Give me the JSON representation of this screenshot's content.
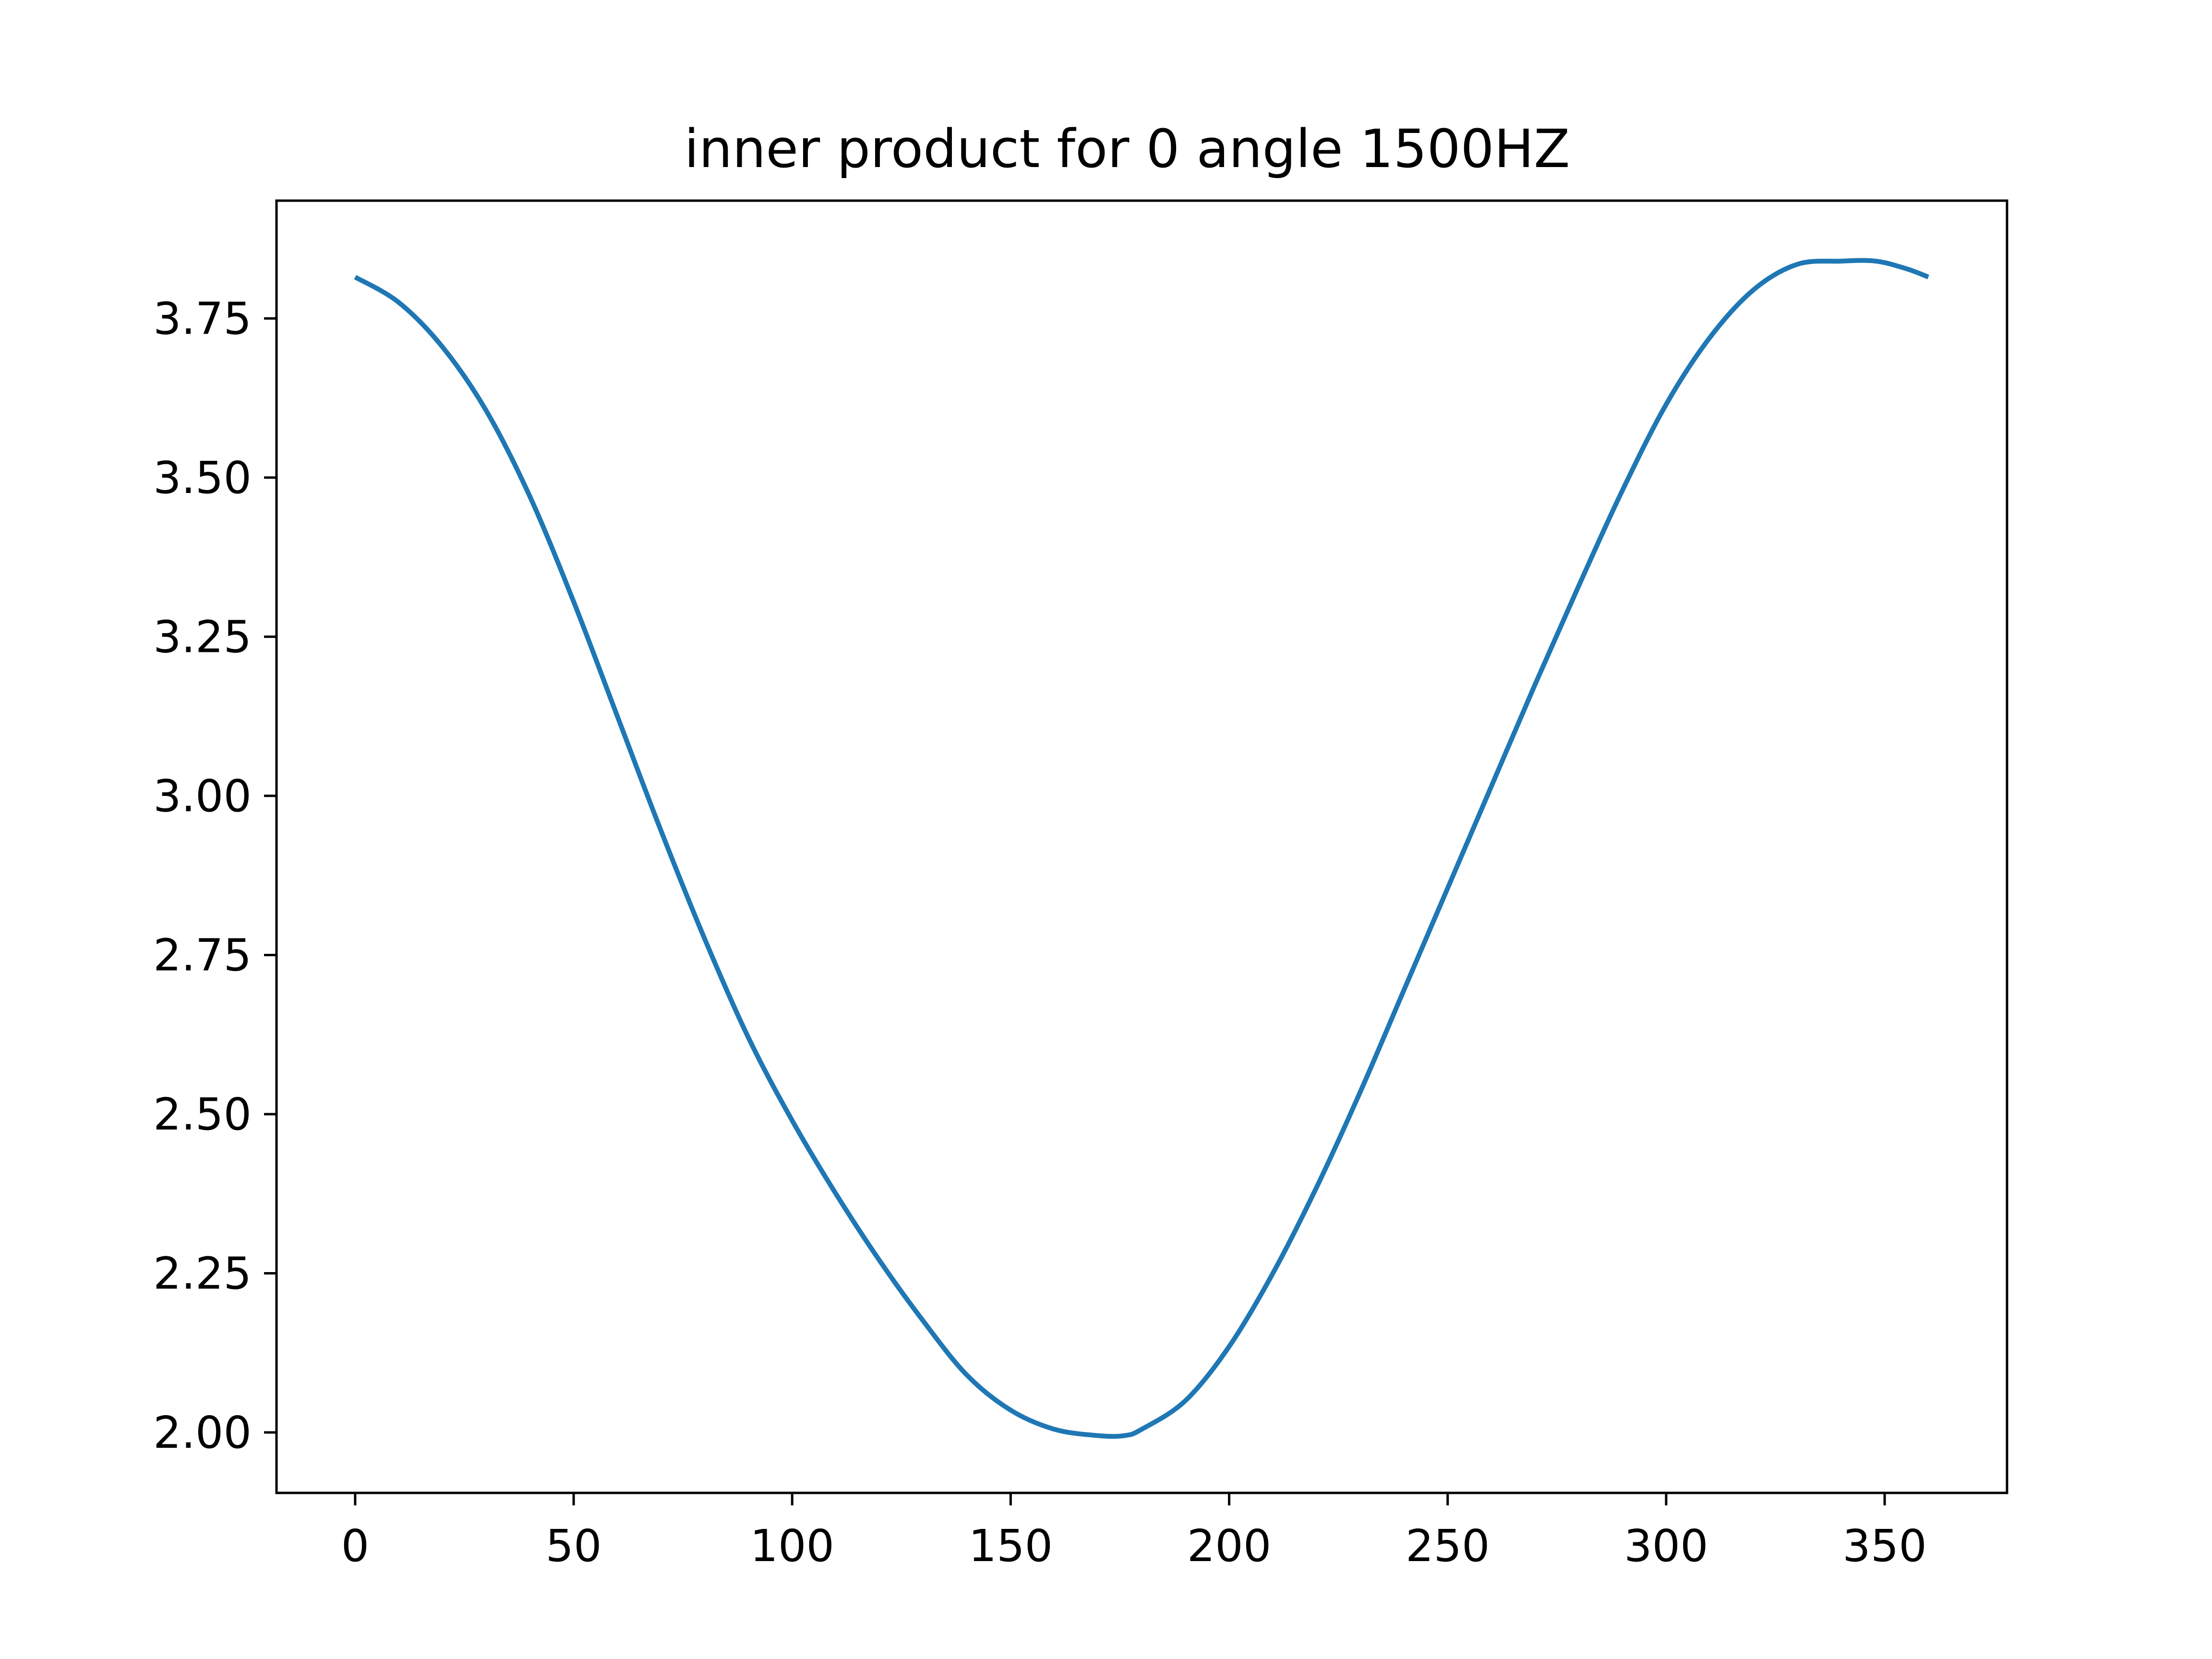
{
  "chart_data": {
    "type": "line",
    "title": "inner product for 0 angle 1500HZ",
    "xlabel": "",
    "ylabel": "",
    "xlim": [
      -18,
      378
    ],
    "ylim": [
      1.905,
      3.935
    ],
    "grid": false,
    "legend": null,
    "x_ticks": [
      {
        "value": 0,
        "label": "0"
      },
      {
        "value": 50,
        "label": "50"
      },
      {
        "value": 100,
        "label": "100"
      },
      {
        "value": 150,
        "label": "150"
      },
      {
        "value": 200,
        "label": "200"
      },
      {
        "value": 250,
        "label": "250"
      },
      {
        "value": 300,
        "label": "300"
      },
      {
        "value": 350,
        "label": "350"
      }
    ],
    "y_ticks": [
      {
        "value": 2.0,
        "label": "2.00"
      },
      {
        "value": 2.25,
        "label": "2.25"
      },
      {
        "value": 2.5,
        "label": "2.50"
      },
      {
        "value": 2.75,
        "label": "2.75"
      },
      {
        "value": 3.0,
        "label": "3.00"
      },
      {
        "value": 3.25,
        "label": "3.25"
      },
      {
        "value": 3.5,
        "label": "3.50"
      },
      {
        "value": 3.75,
        "label": "3.75"
      }
    ],
    "series": [
      {
        "color": "#1f77b4",
        "x": [
          0,
          10,
          20,
          30,
          40,
          50,
          60,
          70,
          80,
          90,
          100,
          110,
          120,
          130,
          140,
          150,
          160,
          170,
          176,
          180,
          190,
          200,
          210,
          220,
          230,
          240,
          250,
          260,
          270,
          280,
          290,
          300,
          310,
          320,
          330,
          340,
          348,
          355,
          360
        ],
        "y": [
          3.815,
          3.775,
          3.705,
          3.605,
          3.47,
          3.305,
          3.125,
          2.945,
          2.775,
          2.62,
          2.49,
          2.375,
          2.27,
          2.175,
          2.09,
          2.035,
          2.005,
          1.995,
          1.995,
          2.005,
          2.05,
          2.135,
          2.25,
          2.385,
          2.535,
          2.695,
          2.855,
          3.015,
          3.175,
          3.33,
          3.48,
          3.615,
          3.72,
          3.795,
          3.835,
          3.84,
          3.84,
          3.828,
          3.815
        ]
      }
    ]
  }
}
